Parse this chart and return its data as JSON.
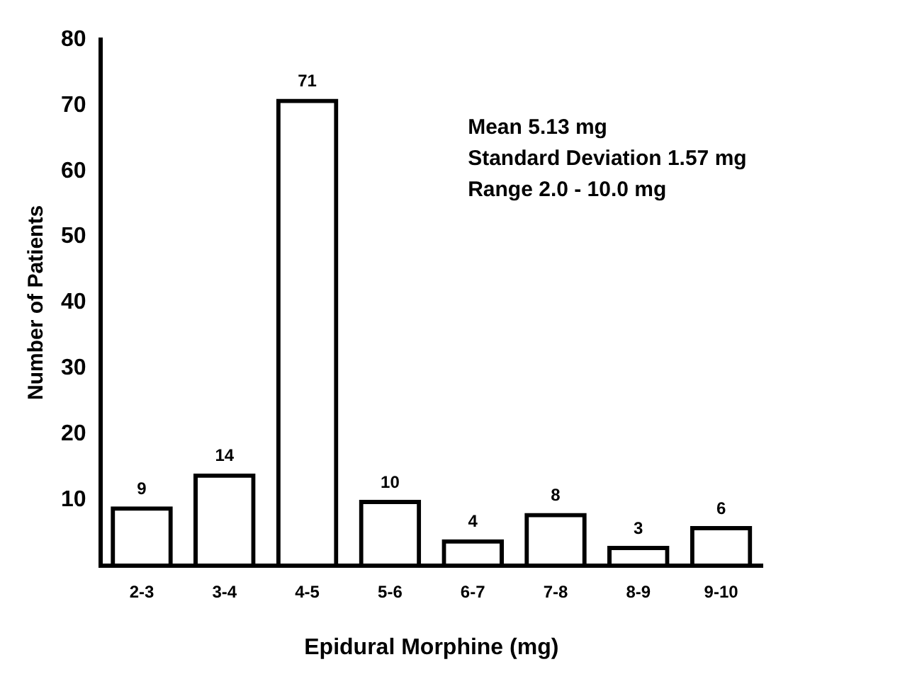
{
  "chart_data": {
    "type": "bar",
    "xlabel": "Epidural Morphine (mg)",
    "ylabel": "Number of Patients",
    "categories": [
      "2-3",
      "3-4",
      "4-5",
      "5-6",
      "6-7",
      "7-8",
      "8-9",
      "9-10"
    ],
    "values": [
      9,
      14,
      71,
      10,
      4,
      8,
      3,
      6
    ],
    "color": "#000000",
    "ylim": [
      0,
      80
    ],
    "yticks": [
      10,
      20,
      30,
      40,
      50,
      60,
      70,
      80
    ],
    "grid": false,
    "legend": false,
    "data_labels": true,
    "annotations": [
      "Mean 5.13 mg",
      "Standard Deviation 1.57 mg",
      "Range 2.0 - 10.0 mg"
    ]
  }
}
